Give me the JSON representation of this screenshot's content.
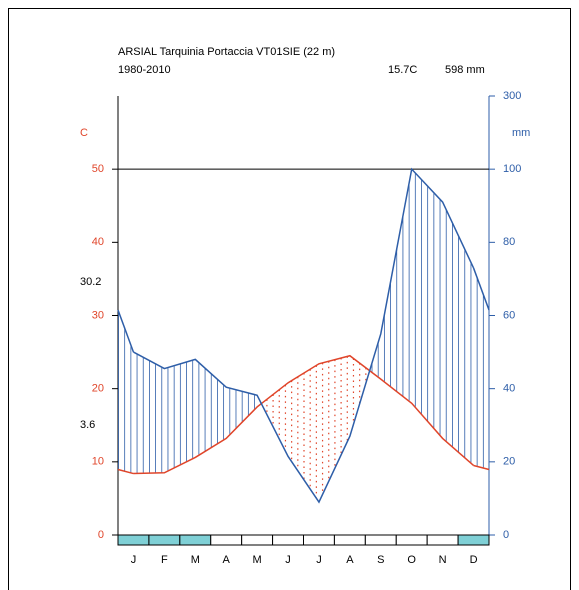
{
  "chart_data": {
    "type": "climate",
    "title": "ARSIAL Tarquinia Portaccia VT01SIE (22 m)",
    "subtitle": "1980-2010",
    "mean_temperature": "15.7C",
    "annual_precipitation": "598 mm",
    "annotations": [
      "30.2",
      "3.6"
    ],
    "ylabel": "C",
    "y2label": "mm",
    "categories": [
      "J",
      "F",
      "M",
      "A",
      "M",
      "J",
      "J",
      "A",
      "S",
      "O",
      "N",
      "D"
    ],
    "frost_months": [
      true,
      true,
      true,
      false,
      false,
      false,
      false,
      false,
      false,
      false,
      false,
      true
    ],
    "frost_color": "#7fd0d6",
    "series": [
      {
        "name": "Temperature",
        "color": "#e0452a",
        "values": [
          8.4,
          8.5,
          10.6,
          13.2,
          17.5,
          20.8,
          23.4,
          24.5,
          21.3,
          18.0,
          13.2,
          9.5
        ]
      },
      {
        "name": "Precipitation",
        "color": "#2e5ea8",
        "axis": "y2",
        "values": [
          50,
          45.5,
          48,
          40.4,
          38.2,
          21.5,
          9,
          27,
          55,
          100,
          91,
          73
        ]
      }
    ],
    "ylim": [
      0,
      60
    ],
    "yticks": [
      0,
      10,
      20,
      30,
      40,
      50
    ],
    "y2lim": [
      0,
      300
    ],
    "y2ticks": [
      0,
      20,
      40,
      60,
      80,
      100,
      300
    ],
    "y2_break": 100
  }
}
